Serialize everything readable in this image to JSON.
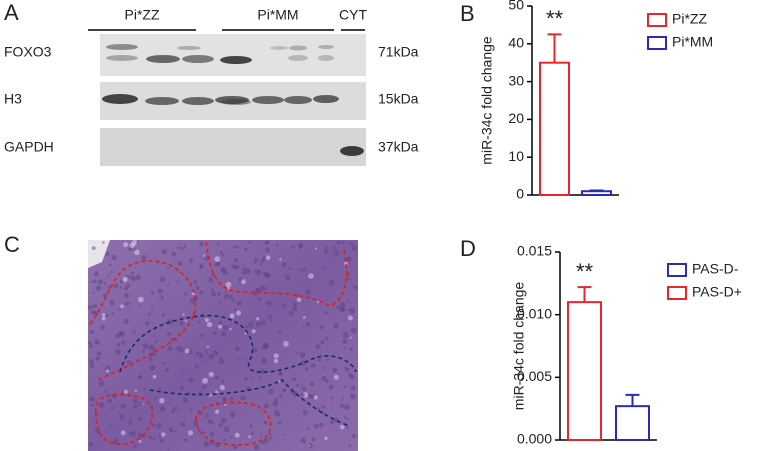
{
  "panels": {
    "a": {
      "label": "A",
      "groups": [
        "Pi*ZZ",
        "Pi*MM",
        "CYT"
      ],
      "proteins": [
        "FOXO3",
        "H3",
        "GAPDH"
      ],
      "sizes": [
        "71kDa",
        "15kDa",
        "37kDa"
      ]
    },
    "c": {
      "label": "C"
    }
  },
  "chart_data": [
    {
      "panel_label": "B",
      "type": "bar",
      "ylabel": "miR-34c fold change",
      "ylim": [
        0,
        50
      ],
      "yticks": [
        0,
        10,
        20,
        30,
        40,
        50
      ],
      "annotation": "**",
      "series": [
        {
          "name": "Pi*ZZ",
          "color": "#e8262b",
          "values": [
            35
          ],
          "errors": [
            7.5
          ]
        },
        {
          "name": "Pi*MM",
          "color": "#2b2bb8",
          "values": [
            1
          ],
          "errors": [
            0.2
          ]
        }
      ]
    },
    {
      "panel_label": "D",
      "type": "bar",
      "ylabel": "miR-34c fold change",
      "ylim": [
        0,
        0.015
      ],
      "yticks": [
        {
          "value": 0,
          "label": "0.000"
        },
        0.005,
        {
          "value": 0.01,
          "label": "0.010"
        },
        0.015
      ],
      "annotation": "**",
      "series": [
        {
          "name": "PAS-D-",
          "color": "#2b2bb8",
          "values": [
            0.0027
          ],
          "errors": [
            0.0009
          ]
        },
        {
          "name": "PAS-D+",
          "color": "#e8262b",
          "values": [
            0.011
          ],
          "errors": [
            0.0012
          ]
        }
      ]
    }
  ]
}
